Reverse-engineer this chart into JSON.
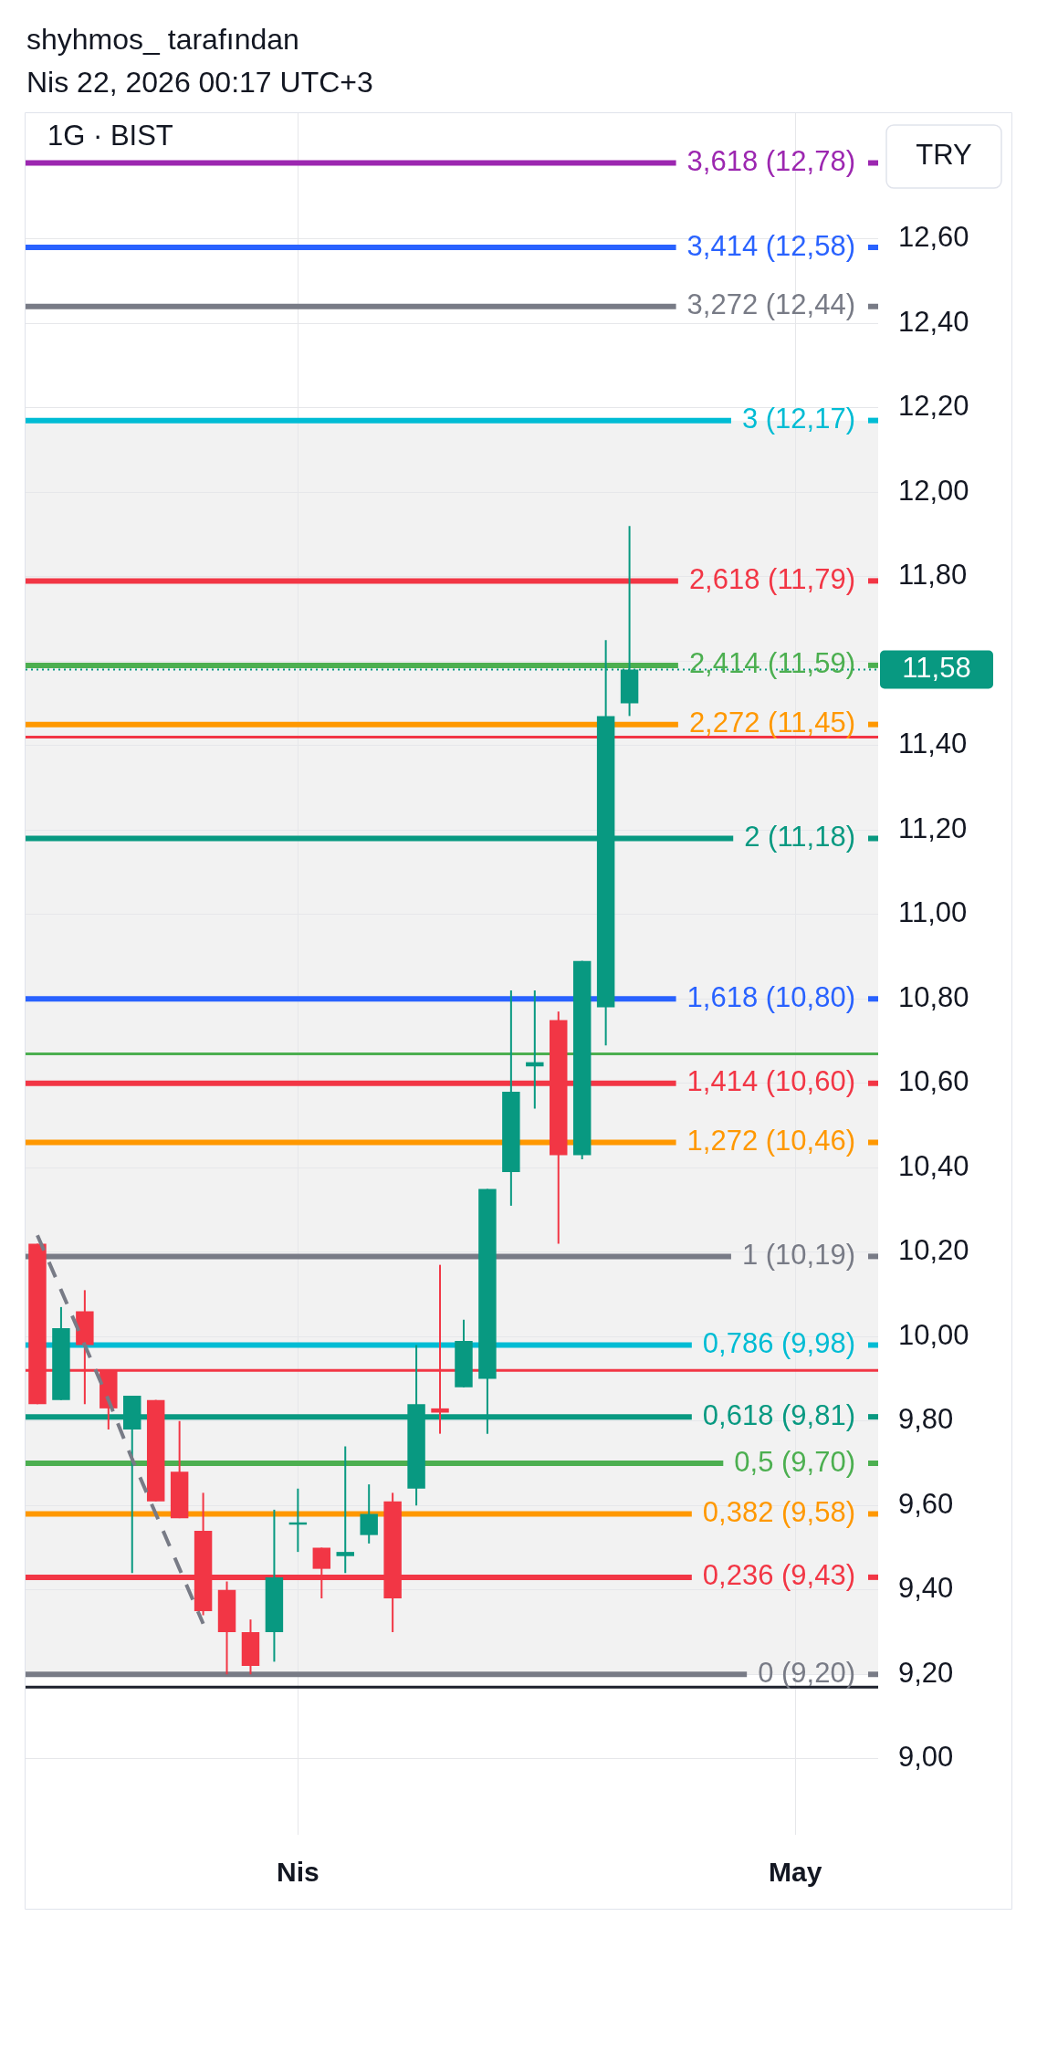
{
  "chart_data": {
    "type": "candlestick",
    "title": "1G · BIST",
    "ylabel": "TRY",
    "annotations": [
      "shyhmos_ tarafından",
      "Nis 22, 2026 00:17 UTC+3"
    ],
    "categories": [
      null,
      null,
      null,
      null,
      null,
      null,
      null,
      null,
      null,
      null,
      null,
      "Nis",
      null,
      null,
      null,
      null,
      null,
      null,
      null,
      null,
      null,
      null,
      null,
      null,
      null,
      null,
      null,
      null,
      null,
      null,
      null,
      null,
      "May",
      null,
      null,
      null
    ],
    "ohlc": [
      [
        10.22,
        10.22,
        9.84,
        9.84
      ],
      [
        9.85,
        10.07,
        9.85,
        10.02
      ],
      [
        10.06,
        10.11,
        9.84,
        9.98
      ],
      [
        9.92,
        9.92,
        9.78,
        9.83
      ],
      [
        9.78,
        9.86,
        9.44,
        9.86
      ],
      [
        9.85,
        9.85,
        9.61,
        9.61
      ],
      [
        9.68,
        9.8,
        9.57,
        9.57
      ],
      [
        9.54,
        9.63,
        9.34,
        9.35
      ],
      [
        9.4,
        9.42,
        9.2,
        9.3
      ],
      [
        9.3,
        9.33,
        9.2,
        9.22
      ],
      [
        9.3,
        9.59,
        9.23,
        9.43
      ],
      [
        9.56,
        9.64,
        9.49,
        9.56
      ],
      [
        9.5,
        9.5,
        9.38,
        9.45
      ],
      [
        9.48,
        9.74,
        9.44,
        9.49
      ],
      [
        9.53,
        9.65,
        9.51,
        9.58
      ],
      [
        9.61,
        9.63,
        9.3,
        9.38
      ],
      [
        9.64,
        9.98,
        9.6,
        9.84
      ],
      [
        9.83,
        10.17,
        9.77,
        9.82
      ],
      [
        9.88,
        10.04,
        9.88,
        9.99
      ],
      [
        9.9,
        10.35,
        9.77,
        10.35
      ],
      [
        10.39,
        10.82,
        10.31,
        10.58
      ],
      [
        10.64,
        10.82,
        10.54,
        10.65
      ],
      [
        10.75,
        10.77,
        10.22,
        10.43
      ],
      [
        10.43,
        10.89,
        10.42,
        10.89
      ],
      [
        10.78,
        11.65,
        10.69,
        11.47
      ],
      [
        11.5,
        11.92,
        11.47,
        11.58
      ],
      null,
      null,
      null,
      null,
      null,
      null,
      null,
      null,
      null,
      null
    ],
    "colors": [
      "#f23645",
      "#089981",
      "#f23645",
      "#f23645",
      "#089981",
      "#f23645",
      "#f23645",
      "#f23645",
      "#f23645",
      "#f23645",
      "#089981",
      "#089981",
      "#f23645",
      "#089981",
      "#089981",
      "#f23645",
      "#089981",
      "#f23645",
      "#089981",
      "#089981",
      "#089981",
      "#089981",
      "#f23645",
      "#089981",
      "#089981",
      "#089981",
      null,
      null,
      null,
      null,
      null,
      null,
      null,
      null,
      null,
      null
    ],
    "series": [
      {
        "type": "line",
        "color": "#787b86",
        "line_style": "dashed",
        "values": [
          10.24,
          10.11,
          9.98,
          9.85,
          9.71,
          9.58,
          9.45,
          9.32,
          null,
          null,
          null,
          null,
          null,
          null,
          null,
          null,
          null,
          null,
          null,
          null,
          null,
          null,
          null,
          null,
          null,
          null,
          null,
          null,
          null,
          null,
          null,
          null,
          null,
          null,
          null,
          null
        ]
      }
    ],
    "ref_lines": [
      {
        "axis": "y",
        "value": 12.78,
        "label": "3,618 (12,78)",
        "color": "#9c27b0"
      },
      {
        "axis": "y",
        "value": 12.58,
        "label": "3,414 (12,58)",
        "color": "#2962ff"
      },
      {
        "axis": "y",
        "value": 12.44,
        "label": "3,272 (12,44)",
        "color": "#787b86"
      },
      {
        "axis": "y",
        "value": 12.17,
        "label": "3 (12,17)",
        "color": "#00bcd4"
      },
      {
        "axis": "y",
        "value": 11.79,
        "label": "2,618 (11,79)",
        "color": "#f23645"
      },
      {
        "axis": "y",
        "value": 11.59,
        "label": "2,414 (11,59)",
        "color": "#4caf50"
      },
      {
        "axis": "y",
        "value": 11.45,
        "label": "2,272 (11,45)",
        "color": "#ff9800"
      },
      {
        "axis": "y",
        "value": 11.18,
        "label": "2 (11,18)",
        "color": "#089981"
      },
      {
        "axis": "y",
        "value": 10.8,
        "label": "1,618 (10,80)",
        "color": "#2962ff"
      },
      {
        "axis": "y",
        "value": 10.6,
        "label": "1,414 (10,60)",
        "color": "#f23645"
      },
      {
        "axis": "y",
        "value": 10.46,
        "label": "1,272 (10,46)",
        "color": "#ff9800"
      },
      {
        "axis": "y",
        "value": 10.19,
        "label": "1 (10,19)",
        "color": "#787b86"
      },
      {
        "axis": "y",
        "value": 9.98,
        "label": "0,786 (9,98)",
        "color": "#00bcd4"
      },
      {
        "axis": "y",
        "value": 9.81,
        "label": "0,618 (9,81)",
        "color": "#089981"
      },
      {
        "axis": "y",
        "value": 9.7,
        "label": "0,5 (9,70)",
        "color": "#4caf50"
      },
      {
        "axis": "y",
        "value": 9.58,
        "label": "0,382 (9,58)",
        "color": "#ff9800"
      },
      {
        "axis": "y",
        "value": 9.43,
        "label": "0,236 (9,43)",
        "color": "#f23645"
      },
      {
        "axis": "y",
        "value": 9.2,
        "label": "0 (9,20)",
        "color": "#787b86"
      },
      {
        "axis": "y",
        "value": 11.42,
        "color": "#f23645"
      },
      {
        "axis": "y",
        "value": 10.67,
        "color": "#4caf50"
      },
      {
        "axis": "y",
        "value": 9.92,
        "color": "#f23645"
      },
      {
        "axis": "y",
        "value": 9.17,
        "color": "#1e222d"
      },
      {
        "axis": "y",
        "value": 11.58,
        "label": "11,58",
        "color": "#089981",
        "line_style": "dotted"
      }
    ],
    "bands": [
      {
        "axis": "y",
        "from": 9.2,
        "to": 12.17,
        "color": "#f2f2f2"
      }
    ],
    "ylim": [
      8.82,
      12.9
    ],
    "yticks": [
      {
        "value": 9,
        "label": "9,00"
      },
      {
        "value": 9.2,
        "label": "9,20"
      },
      {
        "value": 9.4,
        "label": "9,40"
      },
      {
        "value": 9.6,
        "label": "9,60"
      },
      {
        "value": 9.8,
        "label": "9,80"
      },
      {
        "value": 10,
        "label": "10,00"
      },
      {
        "value": 10.2,
        "label": "10,20"
      },
      {
        "value": 10.4,
        "label": "10,40"
      },
      {
        "value": 10.6,
        "label": "10,60"
      },
      {
        "value": 10.8,
        "label": "10,80"
      },
      {
        "value": 11,
        "label": "11,00"
      },
      {
        "value": 11.2,
        "label": "11,20"
      },
      {
        "value": 11.4,
        "label": "11,40"
      },
      {
        "value": 11.6,
        "label": null
      },
      {
        "value": 11.8,
        "label": "11,80"
      },
      {
        "value": 12,
        "label": "12,00"
      },
      {
        "value": 12.2,
        "label": "12,20"
      },
      {
        "value": 12.4,
        "label": "12,40"
      },
      {
        "value": 12.6,
        "label": "12,60"
      }
    ],
    "grid": true
  }
}
